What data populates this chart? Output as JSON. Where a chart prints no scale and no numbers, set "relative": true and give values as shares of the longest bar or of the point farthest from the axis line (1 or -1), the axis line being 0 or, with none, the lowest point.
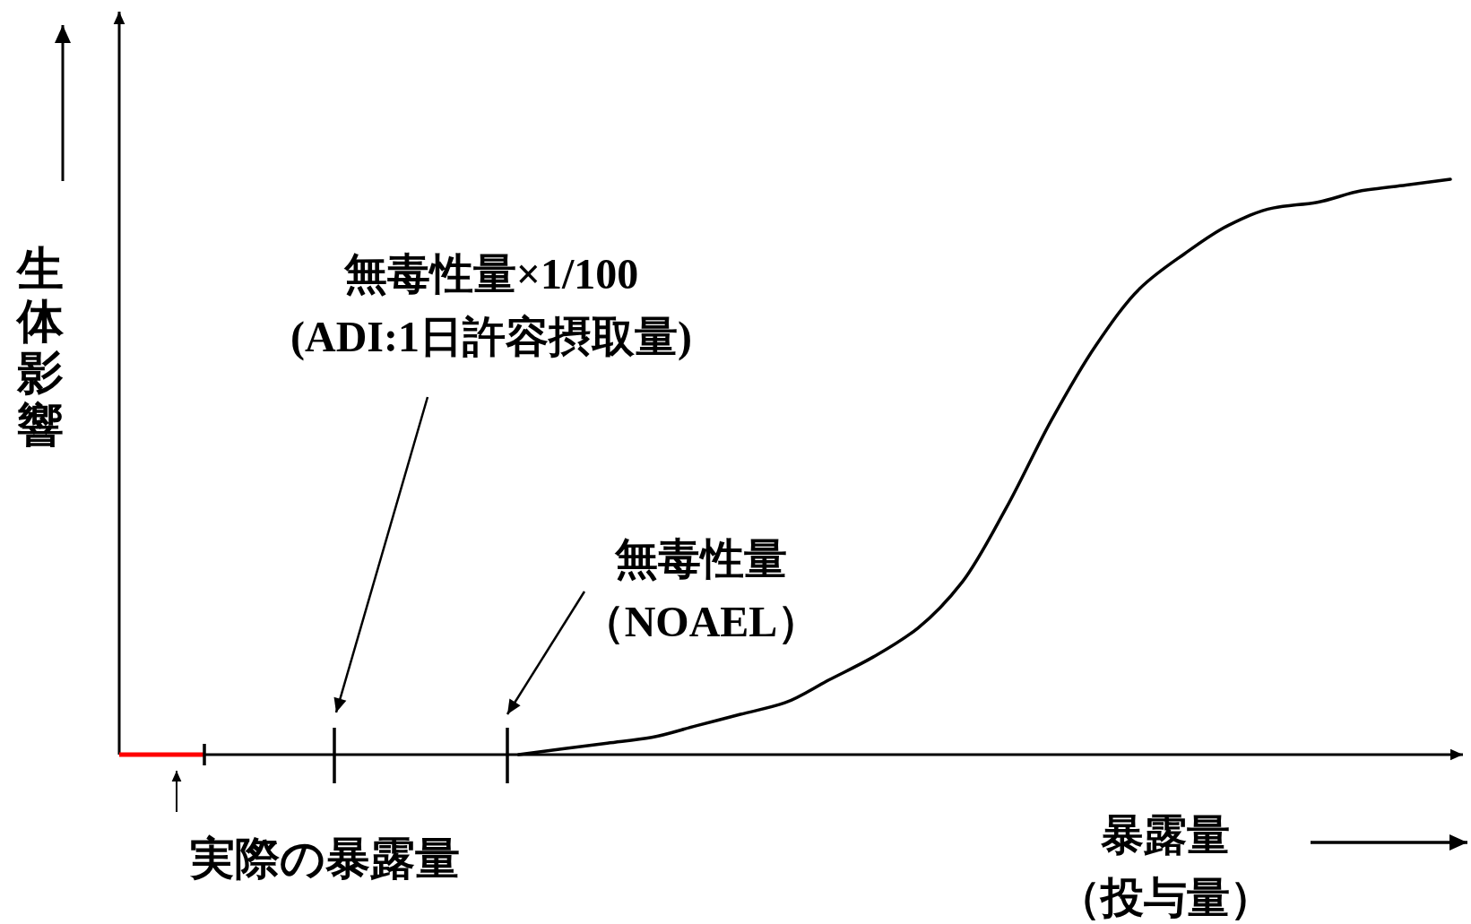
{
  "chart_data": {
    "type": "line",
    "relative": true,
    "categories": [
      null,
      null,
      null,
      null,
      null,
      null,
      null,
      null,
      null,
      null,
      null,
      null,
      null,
      null,
      null,
      null,
      null,
      null,
      null,
      null,
      null,
      null,
      null,
      null,
      null,
      null,
      null,
      null,
      null,
      null,
      null
    ],
    "series": [
      {
        "color": "#000000",
        "values": [
          null,
          null,
          null,
          null,
          null,
          null,
          null,
          null,
          null,
          0,
          0.01,
          0.02,
          0.03,
          0.05,
          0.07,
          0.09,
          0.13,
          0.17,
          0.22,
          0.3,
          0.43,
          0.58,
          0.71,
          0.81,
          0.87,
          0.92,
          0.95,
          0.96,
          0.98,
          0.99,
          1
        ]
      }
    ],
    "xlabel": "暴露量（投与量）",
    "ylabel": "生体影響",
    "annotations": [
      "無毒性量×1/100\n(ADI:1日許容摂取量)",
      "無毒性量（NOAEL）",
      "実際の暴露量"
    ]
  }
}
